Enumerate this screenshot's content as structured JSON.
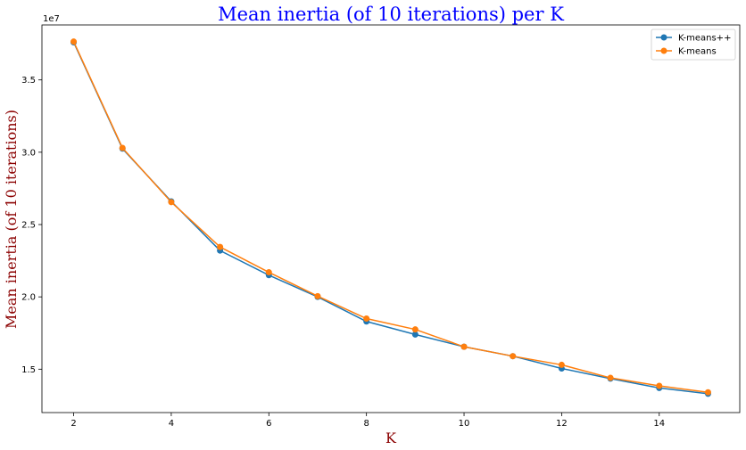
{
  "chart_data": {
    "type": "line",
    "title": "Mean inertia (of 10 iterations) per K",
    "xlabel": "K",
    "ylabel": "Mean inertia (of 10 iterations)",
    "y_offset_label": "1e7",
    "colors": {
      "title": "#0000ff",
      "axis_label": "#8b0000",
      "axes": "#000000"
    },
    "x": [
      2,
      3,
      4,
      5,
      6,
      7,
      8,
      9,
      10,
      11,
      12,
      13,
      14,
      15
    ],
    "xlim": [
      1.35,
      15.65
    ],
    "ylim": [
      12000000.0,
      38800000.0
    ],
    "xticks": [
      2,
      4,
      6,
      8,
      10,
      12,
      14
    ],
    "yticks": [
      15000000,
      20000000,
      25000000,
      30000000,
      35000000
    ],
    "ytick_labels": [
      "1.5",
      "2.0",
      "2.5",
      "3.0",
      "3.5"
    ],
    "grid": false,
    "legend": "top-right",
    "series": [
      {
        "name": "K-means++",
        "color": "#1f77b4",
        "values": [
          37600000,
          30250000,
          26600000,
          23200000,
          21500000,
          20000000,
          18300000,
          17400000,
          16550000,
          15900000,
          15050000,
          14350000,
          13700000,
          13300000
        ]
      },
      {
        "name": "K-means",
        "color": "#ff7f0e",
        "values": [
          37650000,
          30300000,
          26550000,
          23450000,
          21700000,
          20050000,
          18500000,
          17750000,
          16550000,
          15900000,
          15300000,
          14400000,
          13850000,
          13400000
        ]
      }
    ]
  }
}
